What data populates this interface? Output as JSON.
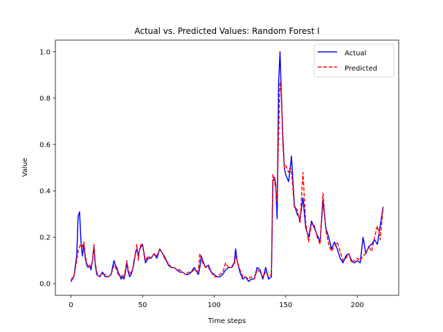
{
  "chart_data": {
    "type": "line",
    "title": "Actual vs. Predicted Values: Random Forest I",
    "xlabel": "Time steps",
    "ylabel": "Value",
    "xlim": [
      -10.9,
      228.9
    ],
    "ylim": [
      -0.05,
      1.05
    ],
    "xticks": [
      0,
      50,
      100,
      150,
      200
    ],
    "yticks": [
      0.0,
      0.2,
      0.4,
      0.6,
      0.8,
      1.0
    ],
    "xtick_labels": [
      "0",
      "50",
      "100",
      "150",
      "200"
    ],
    "ytick_labels": [
      "0.0",
      "0.2",
      "0.4",
      "0.6",
      "0.8",
      "1.0"
    ],
    "grid": false,
    "legend_position": "top-right",
    "series": [
      {
        "name": "Actual",
        "color": "#0000ff",
        "style": "solid",
        "x": [
          0,
          2,
          4,
          5,
          6,
          7,
          8,
          9,
          10,
          11,
          12,
          13,
          14,
          15,
          16,
          17,
          18,
          20,
          22,
          24,
          26,
          28,
          30,
          31,
          32,
          33,
          35,
          36,
          37,
          38,
          39,
          40,
          41,
          42,
          43,
          44,
          45,
          46,
          47,
          48,
          49,
          50,
          52,
          54,
          56,
          58,
          60,
          62,
          64,
          66,
          68,
          70,
          72,
          74,
          76,
          78,
          80,
          82,
          84,
          86,
          88,
          89,
          90,
          91,
          92,
          94,
          96,
          98,
          100,
          102,
          104,
          106,
          108,
          110,
          112,
          114,
          115,
          116,
          118,
          120,
          122,
          124,
          126,
          128,
          130,
          132,
          134,
          136,
          138,
          140,
          141,
          142,
          143,
          144,
          145,
          146,
          147,
          148,
          149,
          150,
          152,
          153,
          154,
          156,
          158,
          160,
          162,
          164,
          166,
          168,
          170,
          172,
          174,
          176,
          178,
          180,
          182,
          184,
          186,
          188,
          190,
          192,
          194,
          196,
          198,
          200,
          202,
          204,
          206,
          208,
          210,
          212,
          214,
          216,
          218
        ],
        "y": [
          0.01,
          0.03,
          0.12,
          0.29,
          0.31,
          0.18,
          0.12,
          0.17,
          0.11,
          0.08,
          0.07,
          0.08,
          0.06,
          0.1,
          0.16,
          0.08,
          0.04,
          0.03,
          0.05,
          0.03,
          0.03,
          0.04,
          0.1,
          0.08,
          0.07,
          0.05,
          0.02,
          0.03,
          0.02,
          0.05,
          0.09,
          0.05,
          0.03,
          0.04,
          0.06,
          0.09,
          0.13,
          0.15,
          0.12,
          0.15,
          0.16,
          0.17,
          0.09,
          0.11,
          0.11,
          0.13,
          0.11,
          0.15,
          0.13,
          0.11,
          0.08,
          0.07,
          0.07,
          0.06,
          0.05,
          0.05,
          0.04,
          0.04,
          0.05,
          0.07,
          0.05,
          0.04,
          0.07,
          0.12,
          0.1,
          0.07,
          0.08,
          0.05,
          0.04,
          0.03,
          0.03,
          0.04,
          0.06,
          0.07,
          0.07,
          0.09,
          0.15,
          0.1,
          0.05,
          0.02,
          0.03,
          0.01,
          0.02,
          0.02,
          0.07,
          0.06,
          0.02,
          0.07,
          0.02,
          0.03,
          0.44,
          0.46,
          0.43,
          0.28,
          0.86,
          1.0,
          0.8,
          0.63,
          0.5,
          0.47,
          0.44,
          0.49,
          0.55,
          0.34,
          0.3,
          0.28,
          0.37,
          0.24,
          0.2,
          0.27,
          0.24,
          0.21,
          0.18,
          0.36,
          0.24,
          0.2,
          0.15,
          0.18,
          0.15,
          0.11,
          0.09,
          0.12,
          0.13,
          0.1,
          0.09,
          0.1,
          0.09,
          0.2,
          0.13,
          0.16,
          0.17,
          0.19,
          0.17,
          0.25,
          0.33
        ]
      },
      {
        "name": "Predicted",
        "color": "#ff0000",
        "style": "dashed",
        "x": [
          0,
          2,
          4,
          5,
          6,
          7,
          8,
          9,
          10,
          11,
          12,
          13,
          14,
          15,
          16,
          17,
          18,
          20,
          22,
          24,
          26,
          28,
          30,
          31,
          32,
          33,
          35,
          36,
          37,
          38,
          39,
          40,
          41,
          42,
          43,
          44,
          45,
          46,
          47,
          48,
          49,
          50,
          52,
          54,
          56,
          58,
          60,
          62,
          64,
          66,
          68,
          70,
          72,
          74,
          76,
          78,
          80,
          82,
          84,
          86,
          88,
          89,
          90,
          91,
          92,
          94,
          96,
          98,
          100,
          102,
          104,
          106,
          108,
          110,
          112,
          114,
          115,
          116,
          118,
          120,
          122,
          124,
          126,
          128,
          130,
          132,
          134,
          136,
          138,
          140,
          141,
          142,
          143,
          144,
          145,
          146,
          147,
          148,
          149,
          150,
          152,
          153,
          154,
          156,
          158,
          160,
          162,
          164,
          166,
          168,
          170,
          172,
          174,
          176,
          178,
          180,
          182,
          184,
          186,
          188,
          190,
          192,
          194,
          196,
          198,
          200,
          202,
          204,
          206,
          208,
          210,
          212,
          214,
          216,
          218
        ],
        "y": [
          0.02,
          0.03,
          0.1,
          0.14,
          0.16,
          0.17,
          0.16,
          0.18,
          0.12,
          0.09,
          0.07,
          0.08,
          0.07,
          0.1,
          0.17,
          0.09,
          0.05,
          0.03,
          0.04,
          0.04,
          0.03,
          0.04,
          0.08,
          0.07,
          0.06,
          0.04,
          0.03,
          0.04,
          0.03,
          0.06,
          0.1,
          0.06,
          0.04,
          0.05,
          0.06,
          0.1,
          0.13,
          0.17,
          0.1,
          0.15,
          0.17,
          0.17,
          0.1,
          0.12,
          0.11,
          0.13,
          0.12,
          0.15,
          0.13,
          0.1,
          0.09,
          0.07,
          0.07,
          0.06,
          0.06,
          0.05,
          0.04,
          0.05,
          0.05,
          0.06,
          0.05,
          0.06,
          0.13,
          0.11,
          0.09,
          0.07,
          0.07,
          0.05,
          0.03,
          0.03,
          0.04,
          0.05,
          0.09,
          0.07,
          0.07,
          0.08,
          0.12,
          0.1,
          0.06,
          0.03,
          0.03,
          0.02,
          0.03,
          0.02,
          0.06,
          0.05,
          0.03,
          0.05,
          0.03,
          0.04,
          0.47,
          0.45,
          0.41,
          0.35,
          0.64,
          0.87,
          0.82,
          0.6,
          0.5,
          0.51,
          0.48,
          0.5,
          0.49,
          0.33,
          0.32,
          0.26,
          0.48,
          0.26,
          0.18,
          0.26,
          0.25,
          0.2,
          0.17,
          0.39,
          0.23,
          0.17,
          0.14,
          0.16,
          0.18,
          0.14,
          0.1,
          0.11,
          0.13,
          0.09,
          0.1,
          0.11,
          0.1,
          0.12,
          0.13,
          0.16,
          0.14,
          0.2,
          0.25,
          0.19,
          0.33
        ]
      }
    ]
  }
}
